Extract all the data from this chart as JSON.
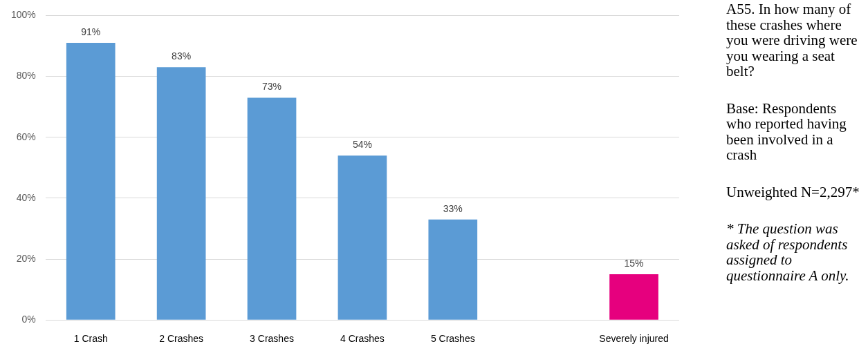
{
  "chart_data": {
    "type": "bar",
    "categories": [
      "1 Crash",
      "2 Crashes",
      "3 Crashes",
      "4 Crashes",
      "5 Crashes",
      null,
      "Severely injured"
    ],
    "values": [
      91,
      83,
      73,
      54,
      33,
      null,
      15
    ],
    "colors": [
      "#5b9bd5",
      "#5b9bd5",
      "#5b9bd5",
      "#5b9bd5",
      "#5b9bd5",
      "#5b9bd5",
      "#e6007e"
    ],
    "value_labels": [
      "91%",
      "83%",
      "73%",
      "54%",
      "33%",
      null,
      "15%"
    ],
    "ylim": [
      0,
      100
    ],
    "yticks": [
      {
        "value": 0,
        "label": "0%"
      },
      {
        "value": 20,
        "label": "20%"
      },
      {
        "value": 40,
        "label": "40%"
      },
      {
        "value": 60,
        "label": "60%"
      },
      {
        "value": 80,
        "label": "80%"
      },
      {
        "value": 100,
        "label": "100%"
      }
    ],
    "grid": "y",
    "annotations": [
      "A55. In how many of these crashes where you were driving were you wearing a seat belt?",
      "Base: Respondents who reported having been involved in a crash",
      "Unweighted N=2,297*",
      "* The question was asked of respondents assigned to questionnaire A only."
    ]
  }
}
